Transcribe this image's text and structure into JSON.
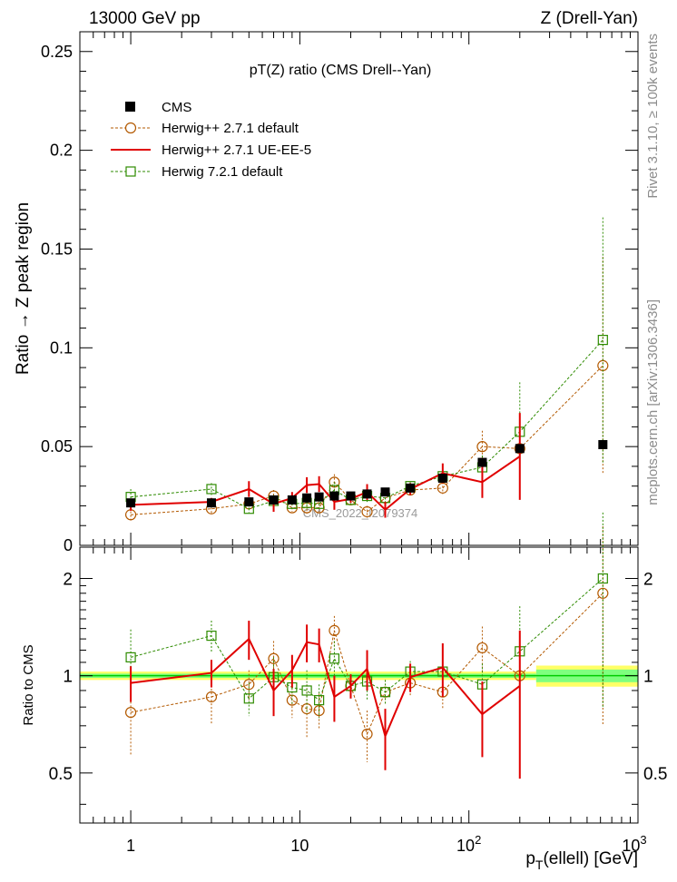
{
  "header": {
    "energy": "13000 GeV pp",
    "process": "Z (Drell-Yan)"
  },
  "side_labels": {
    "rivet": "Rivet 3.1.10, ≥ 100k events",
    "mcplots": "mcplots.cern.ch [arXiv:1306.3436]"
  },
  "colors": {
    "cms": "#000000",
    "hw271": "#b35900",
    "ue": "#e00000",
    "hw7": "#2e8b00",
    "band_inner": "#7fff7f",
    "band_outer": "#ffff66",
    "band_line": "#00cc00"
  },
  "chart_data": [
    {
      "type": "scatter",
      "panel": "main",
      "title": "pT(Z) ratio (CMS Drell--Yan)",
      "watermark": "CMS_2022_I2079374",
      "xlabel": "pT(ellell) [GeV]",
      "xlabel_main": "p",
      "xlabel_sub": "T",
      "xlabel_rest": "(ellell) [GeV]",
      "ylabel": "Ratio → Z peak region",
      "xscale": "log",
      "xlim": [
        0.5,
        1000
      ],
      "ylim": [
        0,
        0.26
      ],
      "x_ticks": [
        {
          "v": 1,
          "label": "1"
        },
        {
          "v": 10,
          "label": "10"
        },
        {
          "v": 100,
          "label": "10",
          "sup": "2"
        },
        {
          "v": 1000,
          "label": "10",
          "sup": "3"
        }
      ],
      "y_ticks": [
        {
          "v": 0,
          "label": "0"
        },
        {
          "v": 0.05,
          "label": "0.05"
        },
        {
          "v": 0.1,
          "label": "0.1"
        },
        {
          "v": 0.15,
          "label": "0.15"
        },
        {
          "v": 0.2,
          "label": "0.2"
        },
        {
          "v": 0.25,
          "label": "0.25"
        }
      ],
      "legend_position": "top-left",
      "legend": [
        {
          "key": "cms",
          "label": "CMS"
        },
        {
          "key": "hw271",
          "label": "Herwig++ 2.7.1 default"
        },
        {
          "key": "ue",
          "label": "Herwig++ 2.7.1 UE-EE-5"
        },
        {
          "key": "hw7",
          "label": "Herwig 7.2.1 default"
        }
      ],
      "series": [
        {
          "key": "cms",
          "name": "CMS",
          "style": "square-filled",
          "x": [
            1.0,
            3.0,
            5.0,
            7.0,
            9.0,
            11.0,
            13.0,
            16.0,
            20.0,
            25.0,
            32.0,
            45.0,
            70.0,
            120.0,
            200.0,
            620.0
          ],
          "y": [
            0.0215,
            0.0215,
            0.022,
            0.023,
            0.023,
            0.024,
            0.0245,
            0.025,
            0.025,
            0.026,
            0.027,
            0.029,
            0.034,
            0.042,
            0.049,
            0.051
          ],
          "err": [
            0.0005,
            0.0005,
            0.0005,
            0.0005,
            0.0005,
            0.0005,
            0.0005,
            0.0005,
            0.0005,
            0.0005,
            0.0005,
            0.0006,
            0.0008,
            0.001,
            0.0015,
            0.002
          ]
        },
        {
          "key": "hw271",
          "name": "Herwig++ 2.7.1 default",
          "style": "circle-open-dashed",
          "x": [
            1.0,
            3.0,
            5.0,
            7.0,
            9.0,
            11.0,
            13.0,
            16.0,
            20.0,
            25.0,
            32.0,
            45.0,
            70.0,
            120.0,
            200.0,
            620.0
          ],
          "y": [
            0.0155,
            0.0185,
            0.021,
            0.025,
            0.019,
            0.019,
            0.019,
            0.032,
            0.023,
            0.017,
            0.024,
            0.028,
            0.029,
            0.05,
            0.049,
            0.091
          ],
          "err": [
            0.0035,
            0.0025,
            0.002,
            0.003,
            0.002,
            0.003,
            0.002,
            0.004,
            0.002,
            0.003,
            0.002,
            0.002,
            0.003,
            0.008,
            0.015,
            0.055
          ]
        },
        {
          "key": "ue",
          "name": "Herwig++ 2.7.1 UE-EE-5",
          "style": "line-solid",
          "x": [
            1.0,
            3.0,
            5.0,
            7.0,
            9.0,
            11.0,
            13.0,
            16.0,
            20.0,
            25.0,
            32.0,
            45.0,
            70.0,
            120.0,
            200.0
          ],
          "y": [
            0.0205,
            0.022,
            0.0285,
            0.021,
            0.024,
            0.0305,
            0.031,
            0.022,
            0.0235,
            0.027,
            0.018,
            0.0285,
            0.0365,
            0.032,
            0.045
          ],
          "err": [
            0.003,
            0.002,
            0.004,
            0.004,
            0.003,
            0.004,
            0.004,
            0.004,
            0.002,
            0.004,
            0.004,
            0.003,
            0.005,
            0.008,
            0.022
          ]
        },
        {
          "key": "hw7",
          "name": "Herwig 7.2.1 default",
          "style": "square-open-dashed",
          "x": [
            1.0,
            3.0,
            5.0,
            7.0,
            9.0,
            11.0,
            13.0,
            16.0,
            20.0,
            25.0,
            32.0,
            45.0,
            70.0,
            120.0,
            200.0,
            620.0
          ],
          "y": [
            0.0245,
            0.0285,
            0.0185,
            0.0225,
            0.021,
            0.0215,
            0.021,
            0.028,
            0.023,
            0.025,
            0.024,
            0.03,
            0.035,
            0.0395,
            0.0575,
            0.104
          ],
          "err": [
            0.004,
            0.003,
            0.002,
            0.003,
            0.002,
            0.003,
            0.002,
            0.004,
            0.002,
            0.003,
            0.002,
            0.002,
            0.003,
            0.006,
            0.025,
            0.062
          ]
        }
      ]
    },
    {
      "type": "scatter",
      "panel": "ratio",
      "ylabel": "Ratio to CMS",
      "xscale": "log",
      "yscale": "log",
      "xlim": [
        0.5,
        1000
      ],
      "ylim": [
        0.35,
        2.5
      ],
      "y_ticks": [
        {
          "v": 0.5,
          "label": "0.5"
        },
        {
          "v": 1,
          "label": "1"
        },
        {
          "v": 2,
          "label": "2"
        }
      ],
      "band": {
        "x_edges": [
          0.5,
          250,
          1000
        ],
        "inner": [
          [
            0.985,
            1.015
          ],
          [
            0.955,
            1.045
          ]
        ],
        "outer": [
          [
            0.97,
            1.03
          ],
          [
            0.925,
            1.075
          ]
        ]
      },
      "series": [
        {
          "key": "hw271",
          "name": "Herwig++ 2.7.1 default",
          "style": "circle-open-dashed",
          "x": [
            1.0,
            3.0,
            5.0,
            7.0,
            9.0,
            11.0,
            13.0,
            16.0,
            20.0,
            25.0,
            32.0,
            45.0,
            70.0,
            120.0,
            200.0,
            620.0
          ],
          "y": [
            0.77,
            0.86,
            0.94,
            1.13,
            0.84,
            0.79,
            0.78,
            1.38,
            0.93,
            0.66,
            0.89,
            0.95,
            0.89,
            1.22,
            1.0,
            1.8
          ],
          "err": [
            0.2,
            0.15,
            0.1,
            0.15,
            0.1,
            0.15,
            0.1,
            0.15,
            0.08,
            0.12,
            0.08,
            0.08,
            0.1,
            0.2,
            0.3,
            1.1
          ]
        },
        {
          "key": "ue",
          "name": "Herwig++ 2.7.1 UE-EE-5",
          "style": "line-solid",
          "x": [
            1.0,
            3.0,
            5.0,
            7.0,
            9.0,
            11.0,
            13.0,
            16.0,
            20.0,
            25.0,
            32.0,
            45.0,
            70.0,
            120.0,
            200.0
          ],
          "y": [
            0.95,
            1.02,
            1.3,
            0.9,
            1.04,
            1.27,
            1.25,
            0.86,
            0.93,
            1.05,
            0.65,
            0.99,
            1.06,
            0.76,
            0.93
          ],
          "err": [
            0.12,
            0.1,
            0.18,
            0.15,
            0.12,
            0.17,
            0.15,
            0.14,
            0.08,
            0.15,
            0.14,
            0.1,
            0.2,
            0.2,
            0.45
          ]
        },
        {
          "key": "hw7",
          "name": "Herwig 7.2.1 default",
          "style": "square-open-dashed",
          "x": [
            1.0,
            3.0,
            5.0,
            7.0,
            9.0,
            11.0,
            13.0,
            16.0,
            20.0,
            25.0,
            32.0,
            45.0,
            70.0,
            120.0,
            200.0,
            620.0
          ],
          "y": [
            1.14,
            1.33,
            0.85,
            0.99,
            0.92,
            0.9,
            0.84,
            1.13,
            0.93,
            0.96,
            0.89,
            1.03,
            1.03,
            0.94,
            1.19,
            2.0
          ],
          "err": [
            0.25,
            0.15,
            0.1,
            0.15,
            0.1,
            0.14,
            0.1,
            0.15,
            0.08,
            0.12,
            0.08,
            0.08,
            0.1,
            0.15,
            0.45,
            1.2
          ]
        }
      ]
    }
  ]
}
